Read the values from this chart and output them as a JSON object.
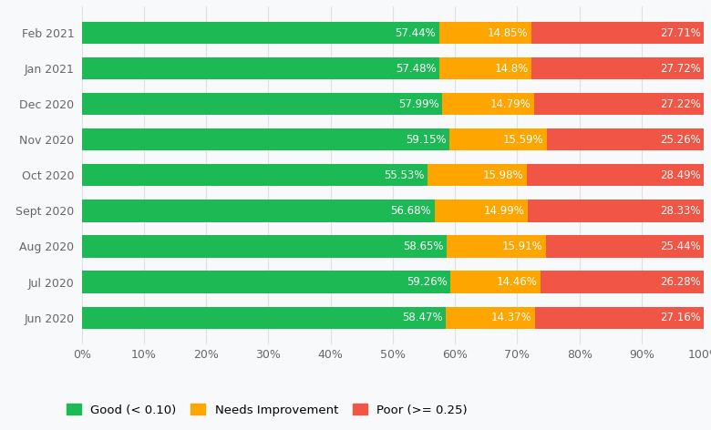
{
  "categories": [
    "Feb 2021",
    "Jan 2021",
    "Dec 2020",
    "Nov 2020",
    "Oct 2020",
    "Sept 2020",
    "Aug 2020",
    "Jul 2020",
    "Jun 2020"
  ],
  "good": [
    57.44,
    57.48,
    57.99,
    59.15,
    55.53,
    56.68,
    58.65,
    59.26,
    58.47
  ],
  "good_labels": [
    "57.44%",
    "57.48%",
    "57.99%",
    "59.15%",
    "55.53%",
    "56.68%",
    "58.65%",
    "59.26%",
    "58.47%"
  ],
  "needs_improvement": [
    14.85,
    14.8,
    14.79,
    15.59,
    15.98,
    14.99,
    15.91,
    14.46,
    14.37
  ],
  "needs_labels": [
    "14.85%",
    "14.8%",
    "14.79%",
    "15.59%",
    "15.98%",
    "14.99%",
    "15.91%",
    "14.46%",
    "14.37%"
  ],
  "poor": [
    27.71,
    27.72,
    27.22,
    25.26,
    28.49,
    28.33,
    25.44,
    26.28,
    27.16
  ],
  "poor_labels": [
    "27.71%",
    "27.72%",
    "27.22%",
    "25.26%",
    "28.49%",
    "28.33%",
    "25.44%",
    "26.28%",
    "27.16%"
  ],
  "color_good": "#1DB954",
  "color_needs": "#FFA500",
  "color_poor": "#F05545",
  "label_good": "Good (< 0.10)",
  "label_needs": "Needs Improvement",
  "label_poor": "Poor (>= 0.25)",
  "bg_color": "#f8f9fa",
  "plot_bg_color": "#ffffff",
  "grid_color": "#e0e0e0",
  "text_color_label": "#666666",
  "bar_label_color": "#ffffff",
  "bar_label_fontsize": 8.5,
  "ylabel_fontsize": 9,
  "xlabel_fontsize": 9,
  "legend_fontsize": 9.5,
  "bar_height": 0.62
}
